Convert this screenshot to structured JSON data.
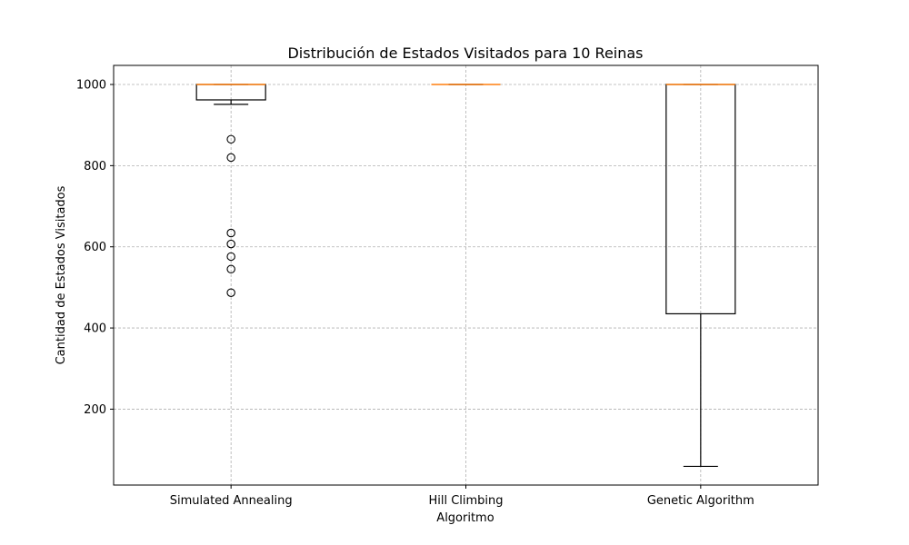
{
  "chart_data": {
    "type": "boxplot",
    "title": "Distribución de Estados Visitados para 10 Reinas",
    "xlabel": "Algoritmo",
    "ylabel": "Cantidad de Estados Visitados",
    "categories": [
      "Simulated Annealing",
      "Hill Climbing",
      "Genetic Algorithm"
    ],
    "ylim": [
      13,
      1047
    ],
    "yticks": [
      200,
      400,
      600,
      800,
      1000
    ],
    "grid": true,
    "colors": {
      "box": "#000000",
      "median": "#ff7f0e",
      "grid": "#b0b0b0"
    },
    "series": [
      {
        "category": "Simulated Annealing",
        "whisker_low": 951,
        "q1": 962,
        "median": 1000,
        "q3": 1000,
        "whisker_high": 1000,
        "outliers": [
          865,
          820,
          634,
          607,
          576,
          545,
          487
        ]
      },
      {
        "category": "Hill Climbing",
        "whisker_low": 1000,
        "q1": 1000,
        "median": 1000,
        "q3": 1000,
        "whisker_high": 1000,
        "outliers": []
      },
      {
        "category": "Genetic Algorithm",
        "whisker_low": 59,
        "q1": 435,
        "median": 1000,
        "q3": 1000,
        "whisker_high": 1000,
        "outliers": []
      }
    ]
  }
}
